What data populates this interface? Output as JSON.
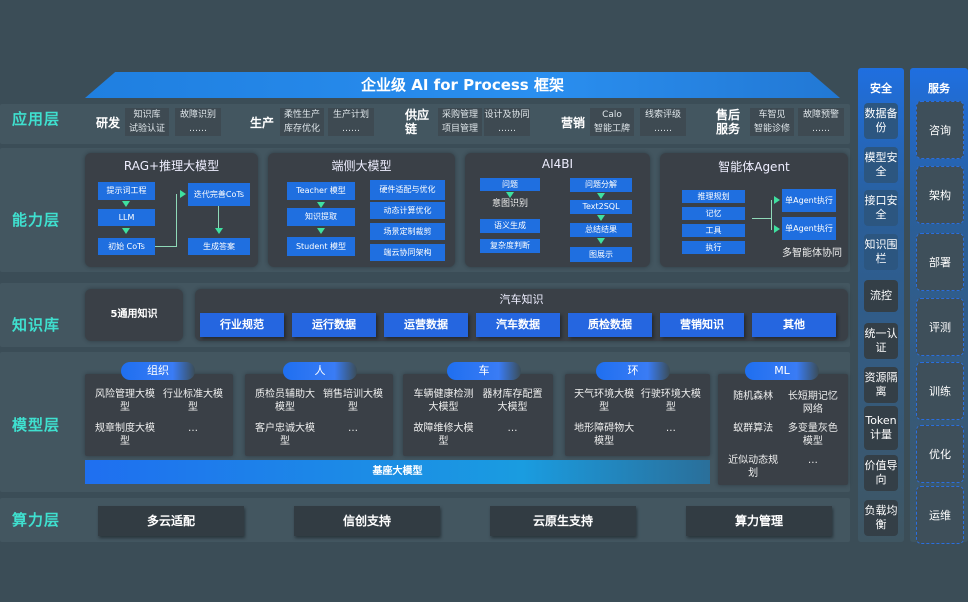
{
  "title": "企业级 AI for Process 框架",
  "layers": {
    "app": "应用层",
    "capability": "能力层",
    "knowledge": "知识库",
    "model": "模型层",
    "compute": "算力层"
  },
  "app_groups": [
    {
      "name": "研发",
      "items": [
        "知识库",
        "故障识别",
        "试验认证",
        "……"
      ]
    },
    {
      "name": "生产",
      "items": [
        "柔性生产",
        "生产计划",
        "库存优化",
        "……"
      ]
    },
    {
      "name": "供应链",
      "items": [
        "采购管理",
        "设计及协同",
        "项目管理",
        "……"
      ]
    },
    {
      "name": "营销",
      "items": [
        "Calo",
        "线索评级",
        "智能工牌",
        "……"
      ]
    },
    {
      "name": "售后服务",
      "items": [
        "车智见",
        "故障预警",
        "智能诊修",
        "……"
      ]
    }
  ],
  "capability": {
    "rag": {
      "title": "RAG+推理大模型",
      "boxes": [
        "提示词工程",
        "LLM",
        "初始 CoTs",
        "迭代完善CoTs",
        "生成答案"
      ]
    },
    "edge": {
      "title": "端侧大模型",
      "boxes": [
        "Teacher 模型",
        "知识提取",
        "Student 模型",
        "硬件适配与优化",
        "动态计算优化",
        "场景定制裁剪",
        "端云协同架构"
      ]
    },
    "ai4bi": {
      "title": "AI4BI",
      "boxes": [
        "问题",
        "意图识别",
        "语义生成",
        "复杂度判断",
        "问题分解",
        "Text2SQL",
        "总结结果",
        "图展示"
      ]
    },
    "agent": {
      "title": "智能体Agent",
      "boxes": [
        "推理规划",
        "记忆",
        "工具",
        "执行",
        "单Agent执行",
        "单Agent执行"
      ],
      "note": "多智能体协同"
    }
  },
  "knowledge": {
    "general": "5通用知识",
    "auto_title": "汽车知识",
    "items": [
      "行业规范",
      "运行数据",
      "运营数据",
      "汽车数据",
      "质检数据",
      "营销知识",
      "其他"
    ]
  },
  "models": [
    {
      "tag": "组织",
      "items": [
        "风险管理大模型",
        "行业标准大模型",
        "规章制度大模型",
        "…"
      ]
    },
    {
      "tag": "人",
      "items": [
        "质检员辅助大模型",
        "销售培训大模型",
        "客户忠诚大模型",
        "…"
      ]
    },
    {
      "tag": "车",
      "items": [
        "车辆健康检测大模型",
        "器材库存配置大模型",
        "故障维修大模型",
        "…"
      ]
    },
    {
      "tag": "环",
      "items": [
        "天气环境大模型",
        "行驶环境大模型",
        "地形障碍物大模型",
        "…"
      ]
    },
    {
      "tag": "ML",
      "items": [
        "随机森林",
        "长短期记忆网络",
        "蚁群算法",
        "多变量灰色模型",
        "近似动态规划",
        "…"
      ]
    }
  ],
  "base_model": "基座大模型",
  "compute": [
    "多云适配",
    "信创支持",
    "云原生支持",
    "算力管理"
  ],
  "security": {
    "title": "安全",
    "items": [
      "数据备份",
      "模型安全",
      "接口安全",
      "知识围栏",
      "流控",
      "统一认证",
      "资源隔离",
      "Token计量",
      "价值导向",
      "负载均衡"
    ]
  },
  "services": {
    "title": "服务",
    "items": [
      "咨询",
      "架构",
      "部署",
      "评测",
      "训练",
      "优化",
      "运维"
    ]
  },
  "colors": {
    "accent": "#1f6fe0",
    "label": "#3fe0cf",
    "background": "#3b4d57"
  }
}
